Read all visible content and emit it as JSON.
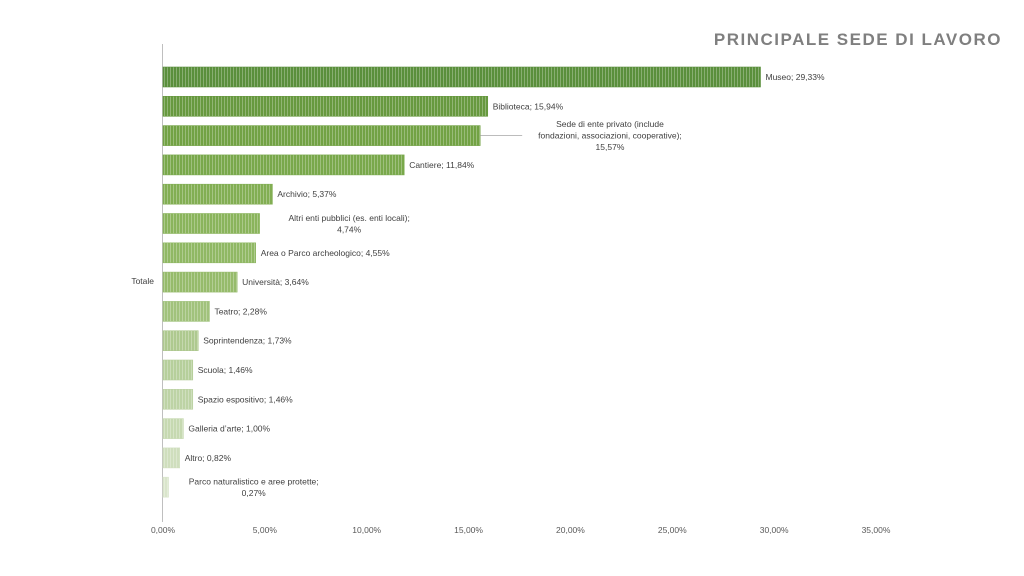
{
  "chart_data": {
    "type": "bar",
    "orientation": "horizontal",
    "title": "PRINCIPALE SEDE DI LAVORO",
    "category_axis_label": "Totale",
    "xlim": [
      0,
      35
    ],
    "x_ticks": [
      "0,00%",
      "5,00%",
      "10,00%",
      "15,00%",
      "20,00%",
      "25,00%",
      "30,00%",
      "35,00%"
    ],
    "series": [
      {
        "name": "Museo",
        "value": 29.33,
        "label_lines": [
          "Museo; 29,33%"
        ]
      },
      {
        "name": "Biblioteca",
        "value": 15.94,
        "label_lines": [
          "Biblioteca; 15,94%"
        ]
      },
      {
        "name": "Sede di ente privato (include fondazioni, associazioni, cooperative)",
        "value": 15.57,
        "label_lines": [
          "Sede di ente privato (include",
          "fondazioni, associazioni, cooperative);",
          "15,57%"
        ]
      },
      {
        "name": "Cantiere",
        "value": 11.84,
        "label_lines": [
          "Cantiere; 11,84%"
        ]
      },
      {
        "name": "Archivio",
        "value": 5.37,
        "label_lines": [
          "Archivio; 5,37%"
        ]
      },
      {
        "name": "Altri enti pubblici (es. enti locali)",
        "value": 4.74,
        "label_lines": [
          "Altri enti pubblici (es. enti locali);",
          "4,74%"
        ]
      },
      {
        "name": "Area o Parco archeologico",
        "value": 4.55,
        "label_lines": [
          "Area o Parco archeologico; 4,55%"
        ]
      },
      {
        "name": "Università",
        "value": 3.64,
        "label_lines": [
          "Università; 3,64%"
        ]
      },
      {
        "name": "Teatro",
        "value": 2.28,
        "label_lines": [
          "Teatro; 2,28%"
        ]
      },
      {
        "name": "Soprintendenza",
        "value": 1.73,
        "label_lines": [
          "Soprintendenza; 1,73%"
        ]
      },
      {
        "name": "Scuola",
        "value": 1.46,
        "label_lines": [
          "Scuola; 1,46%"
        ]
      },
      {
        "name": "Spazio espositivo",
        "value": 1.46,
        "label_lines": [
          "Spazio espositivo; 1,46%"
        ]
      },
      {
        "name": "Galleria d'arte",
        "value": 1.0,
        "label_lines": [
          "Galleria d’arte; 1,00%"
        ]
      },
      {
        "name": "Altro",
        "value": 0.82,
        "label_lines": [
          "Altro; 0,82%"
        ]
      },
      {
        "name": "Parco naturalistico e aree protette",
        "value": 0.27,
        "label_lines": [
          "Parco naturalistico e aree protette;",
          "0,27%"
        ]
      }
    ],
    "series_colors": [
      "#5a8f3c",
      "#67993f",
      "#72a244",
      "#79a84b",
      "#82ae53",
      "#8ab45c",
      "#90b864",
      "#96bb6b",
      "#a1c27c",
      "#aec98f",
      "#b6cf9b",
      "#bdd3a5",
      "#c6d9b1",
      "#cfdebd",
      "#d9e5cb"
    ],
    "grid": false,
    "legend": "none"
  }
}
